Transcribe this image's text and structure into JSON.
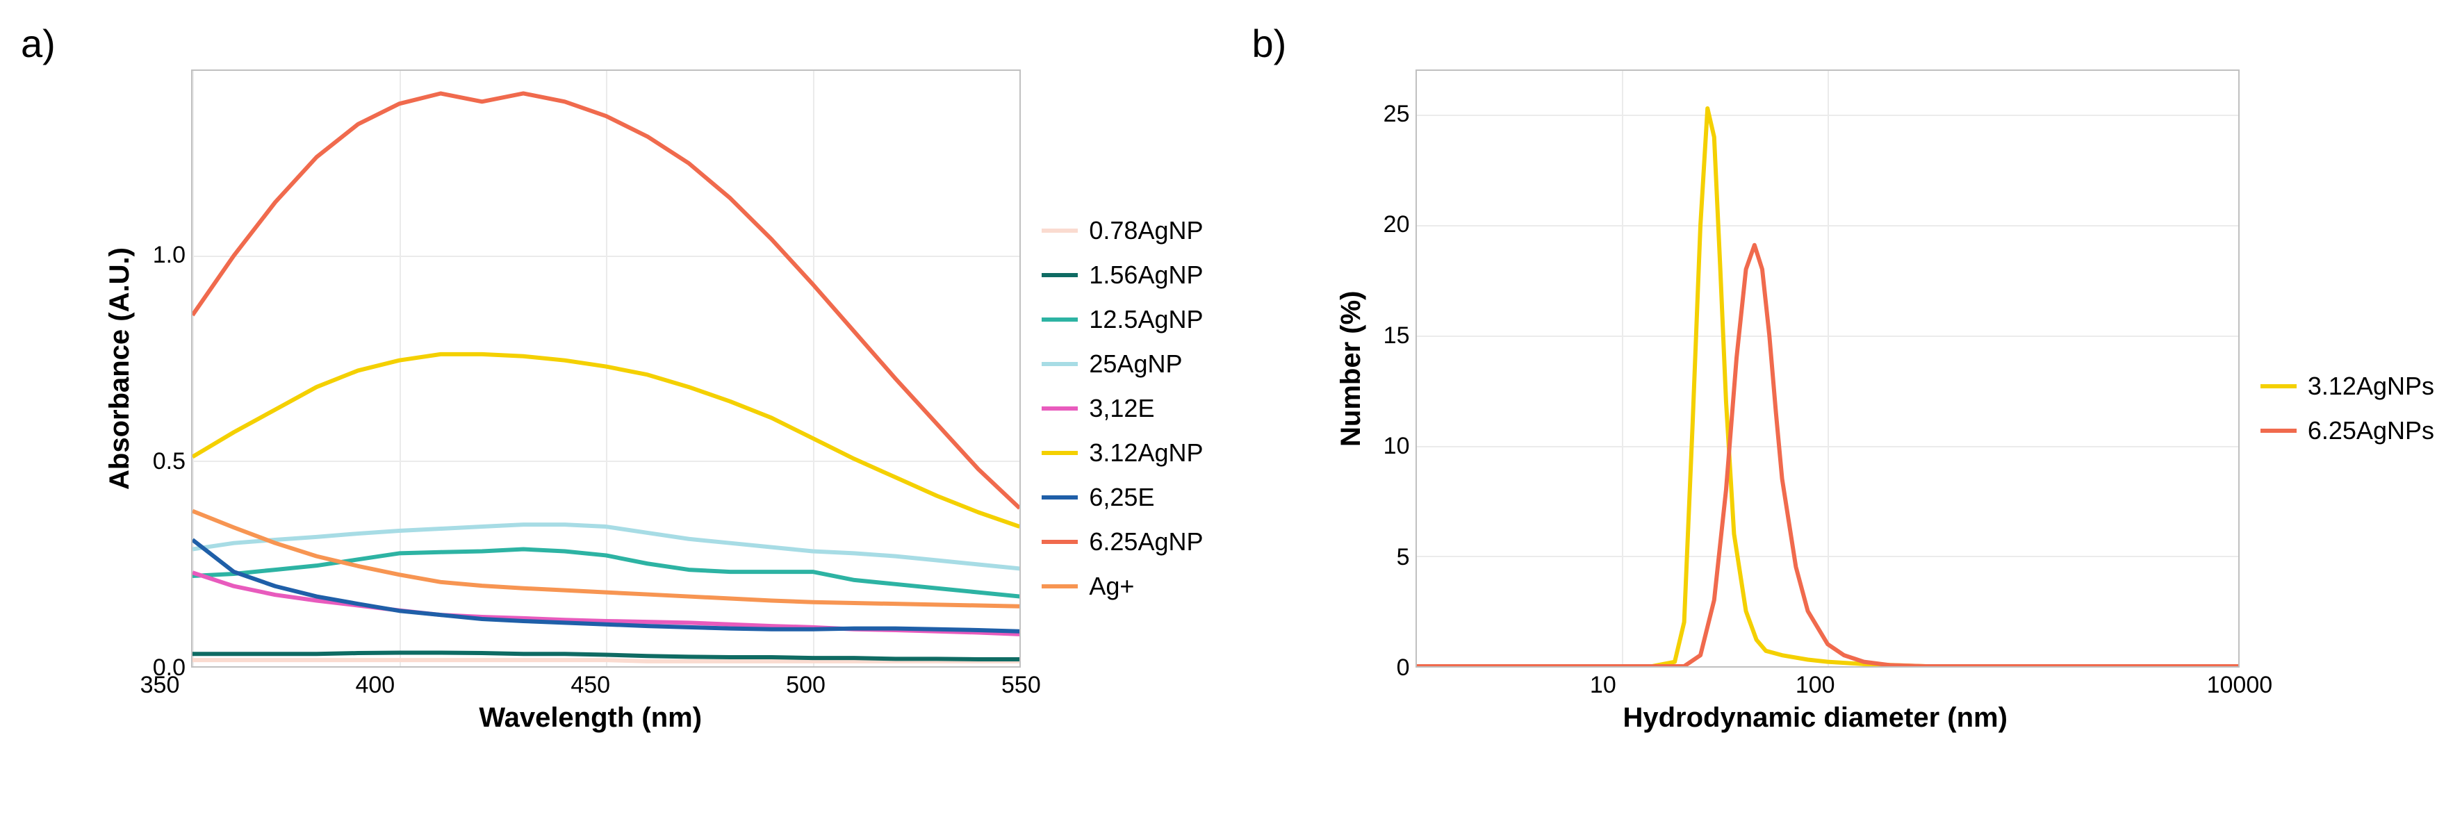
{
  "panel_a": {
    "label": "a)",
    "type": "line",
    "x_axis_label": "Wavelength (nm)",
    "y_axis_label": "Absorbance (A.U.)",
    "xlim": [
      350,
      550
    ],
    "ylim": [
      0.0,
      1.45
    ],
    "x_ticks": [
      350,
      400,
      450,
      500,
      550
    ],
    "y_ticks": [
      0.0,
      0.5,
      1.0
    ],
    "background_color": "#ffffff",
    "grid_color": "#ebebeb",
    "border_color": "#c0c0c0",
    "label_fontsize": 40,
    "tick_fontsize": 34,
    "panel_label_fontsize": 56,
    "line_width": 6,
    "x_values": [
      350,
      360,
      370,
      380,
      390,
      400,
      410,
      420,
      430,
      440,
      450,
      460,
      470,
      480,
      490,
      500,
      510,
      520,
      530,
      540,
      550
    ],
    "series": [
      {
        "name": "0.78AgNP",
        "color": "#fadbd0",
        "y": [
          0.015,
          0.015,
          0.015,
          0.015,
          0.015,
          0.015,
          0.015,
          0.015,
          0.015,
          0.015,
          0.015,
          0.012,
          0.012,
          0.012,
          0.012,
          0.012,
          0.012,
          0.012,
          0.012,
          0.012,
          0.012
        ]
      },
      {
        "name": "1.56AgNP",
        "color": "#0f6b63",
        "y": [
          0.03,
          0.03,
          0.03,
          0.03,
          0.032,
          0.033,
          0.033,
          0.032,
          0.03,
          0.03,
          0.028,
          0.025,
          0.023,
          0.022,
          0.022,
          0.02,
          0.02,
          0.018,
          0.018,
          0.017,
          0.017
        ]
      },
      {
        "name": "12.5AgNP",
        "color": "#2db3a3",
        "y": [
          0.22,
          0.225,
          0.235,
          0.245,
          0.26,
          0.275,
          0.278,
          0.28,
          0.285,
          0.28,
          0.27,
          0.25,
          0.235,
          0.23,
          0.23,
          0.23,
          0.21,
          0.2,
          0.19,
          0.18,
          0.17
        ]
      },
      {
        "name": "25AgNP",
        "color": "#a7dce5",
        "y": [
          0.285,
          0.3,
          0.308,
          0.315,
          0.323,
          0.33,
          0.335,
          0.34,
          0.345,
          0.345,
          0.34,
          0.325,
          0.31,
          0.3,
          0.29,
          0.28,
          0.275,
          0.268,
          0.258,
          0.248,
          0.238
        ]
      },
      {
        "name": "3,12E",
        "color": "#e85bbd",
        "y": [
          0.228,
          0.195,
          0.174,
          0.16,
          0.148,
          0.136,
          0.125,
          0.12,
          0.117,
          0.113,
          0.11,
          0.108,
          0.106,
          0.102,
          0.098,
          0.095,
          0.09,
          0.088,
          0.085,
          0.082,
          0.078
        ]
      },
      {
        "name": "3.12AgNP",
        "color": "#f4d000",
        "y": [
          0.51,
          0.57,
          0.625,
          0.68,
          0.72,
          0.745,
          0.76,
          0.76,
          0.755,
          0.745,
          0.73,
          0.71,
          0.68,
          0.645,
          0.605,
          0.555,
          0.505,
          0.46,
          0.415,
          0.375,
          0.34
        ]
      },
      {
        "name": "6,25E",
        "color": "#1f5fa8",
        "y": [
          0.308,
          0.23,
          0.195,
          0.17,
          0.152,
          0.135,
          0.125,
          0.115,
          0.11,
          0.106,
          0.102,
          0.098,
          0.095,
          0.092,
          0.09,
          0.09,
          0.092,
          0.092,
          0.09,
          0.088,
          0.085
        ]
      },
      {
        "name": "6.25AgNP",
        "color": "#f06a4d",
        "y": [
          0.855,
          1.0,
          1.13,
          1.24,
          1.32,
          1.37,
          1.395,
          1.375,
          1.395,
          1.375,
          1.34,
          1.29,
          1.225,
          1.14,
          1.04,
          0.93,
          0.815,
          0.7,
          0.59,
          0.48,
          0.385
        ]
      },
      {
        "name": "Ag+",
        "color": "#f79552",
        "y": [
          0.378,
          0.338,
          0.3,
          0.268,
          0.244,
          0.223,
          0.205,
          0.196,
          0.19,
          0.185,
          0.18,
          0.175,
          0.17,
          0.165,
          0.16,
          0.156,
          0.154,
          0.152,
          0.15,
          0.148,
          0.146
        ]
      }
    ]
  },
  "panel_b": {
    "label": "b)",
    "type": "line",
    "x_axis_label": "Hydrodynamic diameter (nm)",
    "y_axis_label": "Number (%)",
    "x_scale": "log",
    "xlim": [
      1,
      10000
    ],
    "ylim": [
      0,
      27
    ],
    "x_ticks": [
      10,
      100,
      10000
    ],
    "y_ticks": [
      0,
      5,
      10,
      15,
      20,
      25
    ],
    "background_color": "#ffffff",
    "grid_color": "#ebebeb",
    "border_color": "#c0c0c0",
    "label_fontsize": 40,
    "tick_fontsize": 34,
    "panel_label_fontsize": 56,
    "line_width": 6,
    "series": [
      {
        "name": "3.12AgNPs",
        "color": "#f4d000",
        "x": [
          1,
          5,
          10,
          14,
          18,
          20,
          22,
          24,
          26,
          28,
          30,
          32,
          35,
          40,
          45,
          50,
          60,
          80,
          100,
          150,
          300,
          1000,
          10000
        ],
        "y": [
          0,
          0,
          0,
          0,
          0.2,
          2,
          11,
          20,
          25.3,
          24,
          18,
          12,
          6,
          2.5,
          1.2,
          0.7,
          0.5,
          0.3,
          0.2,
          0.1,
          0,
          0,
          0
        ]
      },
      {
        "name": "6.25AgNPs",
        "color": "#f06a4d",
        "x": [
          1,
          5,
          10,
          15,
          20,
          24,
          28,
          32,
          36,
          40,
          44,
          48,
          52,
          56,
          60,
          70,
          80,
          100,
          120,
          150,
          200,
          300,
          1000,
          10000
        ],
        "y": [
          0,
          0,
          0,
          0,
          0,
          0.5,
          3,
          8,
          14,
          18,
          19.1,
          18,
          15,
          11.5,
          8.5,
          4.5,
          2.5,
          1,
          0.5,
          0.2,
          0.05,
          0,
          0,
          0
        ]
      }
    ]
  }
}
